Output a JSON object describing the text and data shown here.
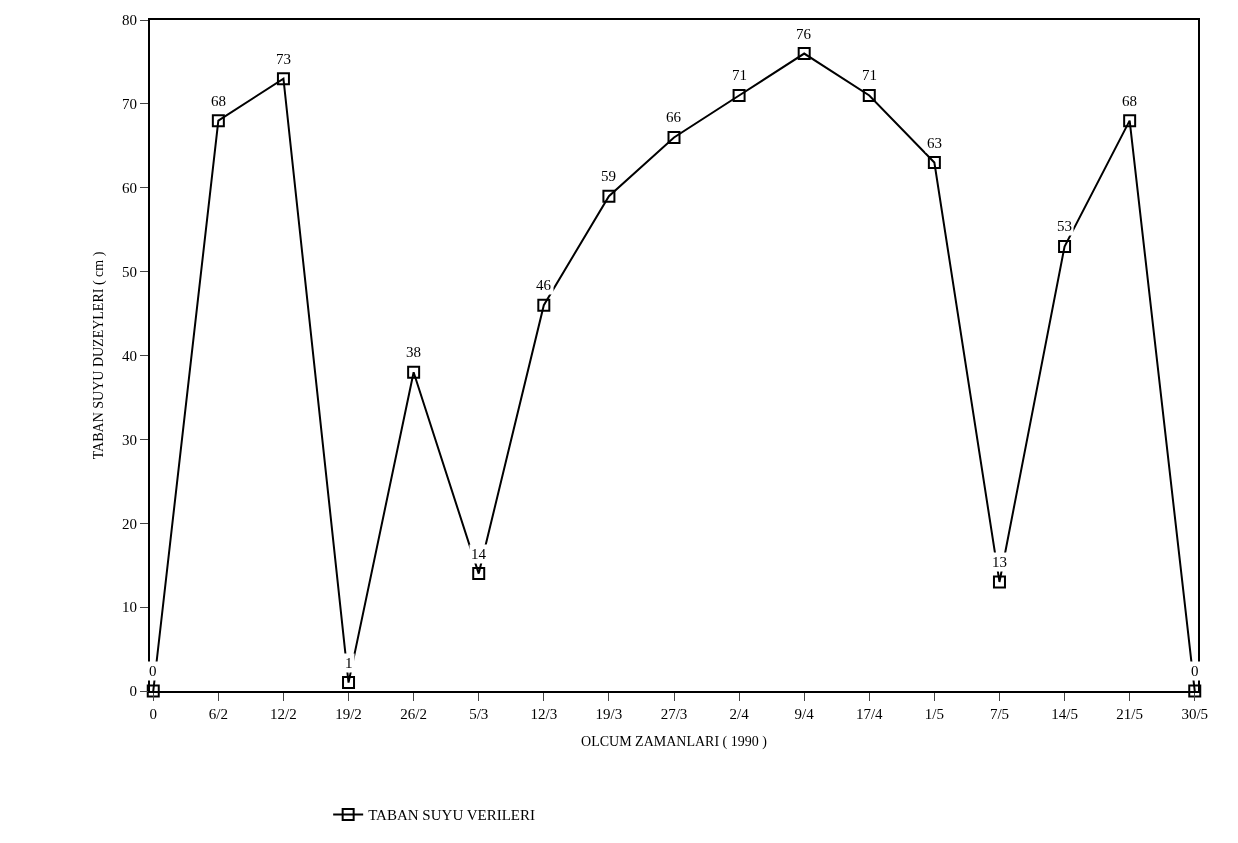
{
  "chart_data": {
    "type": "line",
    "xlabel": "OLCUM ZAMANLARI ( 1990 )",
    "ylabel": "TABAN SUYU DUZEYLERI ( cm )",
    "categories": [
      "0",
      "6/2",
      "12/2",
      "19/2",
      "26/2",
      "5/3",
      "12/3",
      "19/3",
      "27/3",
      "2/4",
      "9/4",
      "17/4",
      "1/5",
      "7/5",
      "14/5",
      "21/5",
      "30/5"
    ],
    "series": [
      {
        "name": "TABAN SUYU VERILERI",
        "color": "#000000",
        "values": [
          0,
          68,
          73,
          1,
          38,
          14,
          46,
          59,
          66,
          71,
          76,
          71,
          63,
          13,
          53,
          68,
          0
        ]
      }
    ],
    "ylim": [
      0,
      80
    ],
    "yticks": [
      0,
      10,
      20,
      30,
      40,
      50,
      60,
      70,
      80
    ],
    "legend": "bottom",
    "marker": "square",
    "line_style": "solid",
    "data_labels": true
  }
}
